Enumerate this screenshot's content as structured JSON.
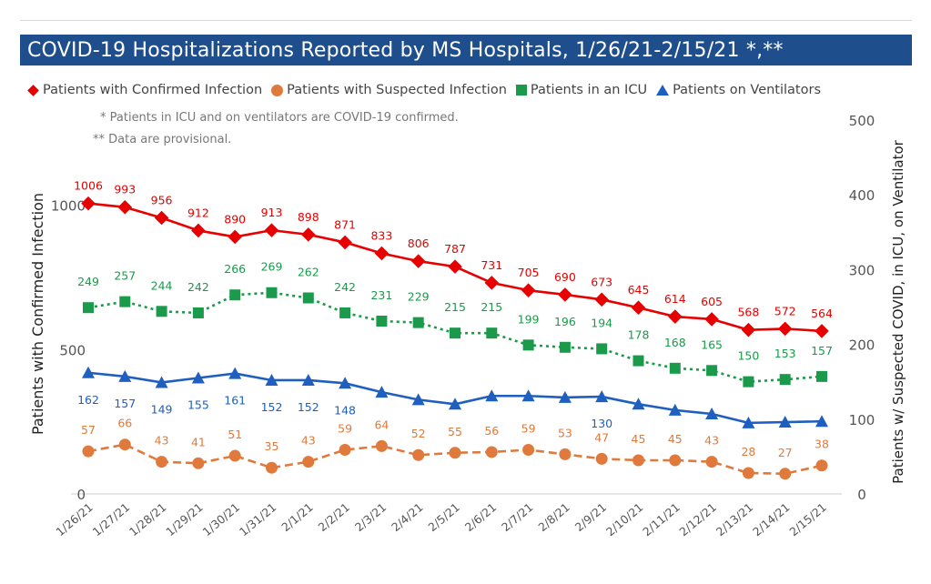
{
  "title": "COVID-19 Hospitalizations Reported by MS Hospitals, 1/26/21-2/15/21 *,**",
  "notes": {
    "icu_note": "* Patients in ICU and on ventilators are COVID-19 confirmed.",
    "provisional_note": "** Data are provisional."
  },
  "colors": {
    "title_bg": "#1f4e8c",
    "confirmed": "#e60000",
    "suspected": "#e07a3c",
    "icu": "#1a9a4a",
    "ventilators": "#1f5fbf"
  },
  "chart_data": {
    "type": "line",
    "title": "COVID-19 Hospitalizations Reported by MS Hospitals, 1/26/21-2/15/21 *,**",
    "ylabel": "Patients with Confirmed Infection",
    "y2label": "Patients w/ Suspected COVID, in ICU, on Ventilator",
    "xlabel": "",
    "ylim": [
      0,
      1250
    ],
    "y2lim": [
      0,
      500
    ],
    "yticks": [
      0,
      500,
      1000
    ],
    "y2ticks": [
      0,
      100,
      200,
      300,
      400,
      500
    ],
    "grid": false,
    "legend": "top",
    "categories": [
      "1/26/21",
      "1/27/21",
      "1/28/21",
      "1/29/21",
      "1/30/21",
      "1/31/21",
      "2/1/21",
      "2/2/21",
      "2/3/21",
      "2/4/21",
      "2/5/21",
      "2/6/21",
      "2/7/21",
      "2/8/21",
      "2/9/21",
      "2/10/21",
      "2/11/21",
      "2/12/21",
      "2/13/21",
      "2/14/21",
      "2/15/21"
    ],
    "series": [
      {
        "name": "Patients with Confirmed Infection",
        "axis": "left",
        "marker": "diamond",
        "values": [
          1006,
          993,
          956,
          912,
          890,
          913,
          898,
          871,
          833,
          806,
          787,
          731,
          705,
          690,
          673,
          645,
          614,
          605,
          568,
          572,
          564
        ],
        "labels": [
          "1006",
          "993",
          "956",
          "912",
          "890",
          "913",
          "898",
          "871",
          "833",
          "806",
          "787",
          "731",
          "705",
          "690",
          "673",
          "645",
          "614",
          "605",
          "568",
          "572",
          "564"
        ]
      },
      {
        "name": "Patients with Suspected Infection",
        "axis": "right",
        "marker": "circle",
        "dashed": true,
        "values": [
          57,
          66,
          43,
          41,
          51,
          35,
          43,
          59,
          64,
          52,
          55,
          56,
          59,
          53,
          47,
          45,
          45,
          43,
          28,
          27,
          38
        ],
        "labels": [
          "57",
          "66",
          "43",
          "41",
          "51",
          "35",
          "43",
          "59",
          "64",
          "52",
          "55",
          "56",
          "59",
          "53",
          "47",
          "45",
          "45",
          "43",
          "28",
          "27",
          "38"
        ]
      },
      {
        "name": "Patients in an ICU",
        "axis": "right",
        "marker": "square",
        "dotted": true,
        "values": [
          249,
          257,
          244,
          242,
          266,
          269,
          262,
          242,
          231,
          229,
          215,
          215,
          199,
          196,
          194,
          178,
          168,
          165,
          150,
          153,
          157
        ],
        "labels": [
          "249",
          "257",
          "244",
          "242",
          "266",
          "269",
          "262",
          "242",
          "231",
          "229",
          "215",
          "215",
          "199",
          "196",
          "194",
          "178",
          "168",
          "165",
          "150",
          "153",
          "157"
        ]
      },
      {
        "name": "Patients on Ventilators",
        "axis": "right",
        "marker": "triangle",
        "values": [
          162,
          157,
          149,
          155,
          161,
          152,
          152,
          148,
          136,
          126,
          120,
          131,
          131,
          129,
          130,
          120,
          112,
          107,
          95,
          96,
          97
        ],
        "labels": [
          "162",
          "157",
          "149",
          "155",
          "161",
          "152",
          "152",
          "148",
          "",
          "",
          "",
          "",
          "",
          "",
          "130",
          "",
          "",
          "",
          "",
          "",
          ""
        ]
      }
    ]
  }
}
